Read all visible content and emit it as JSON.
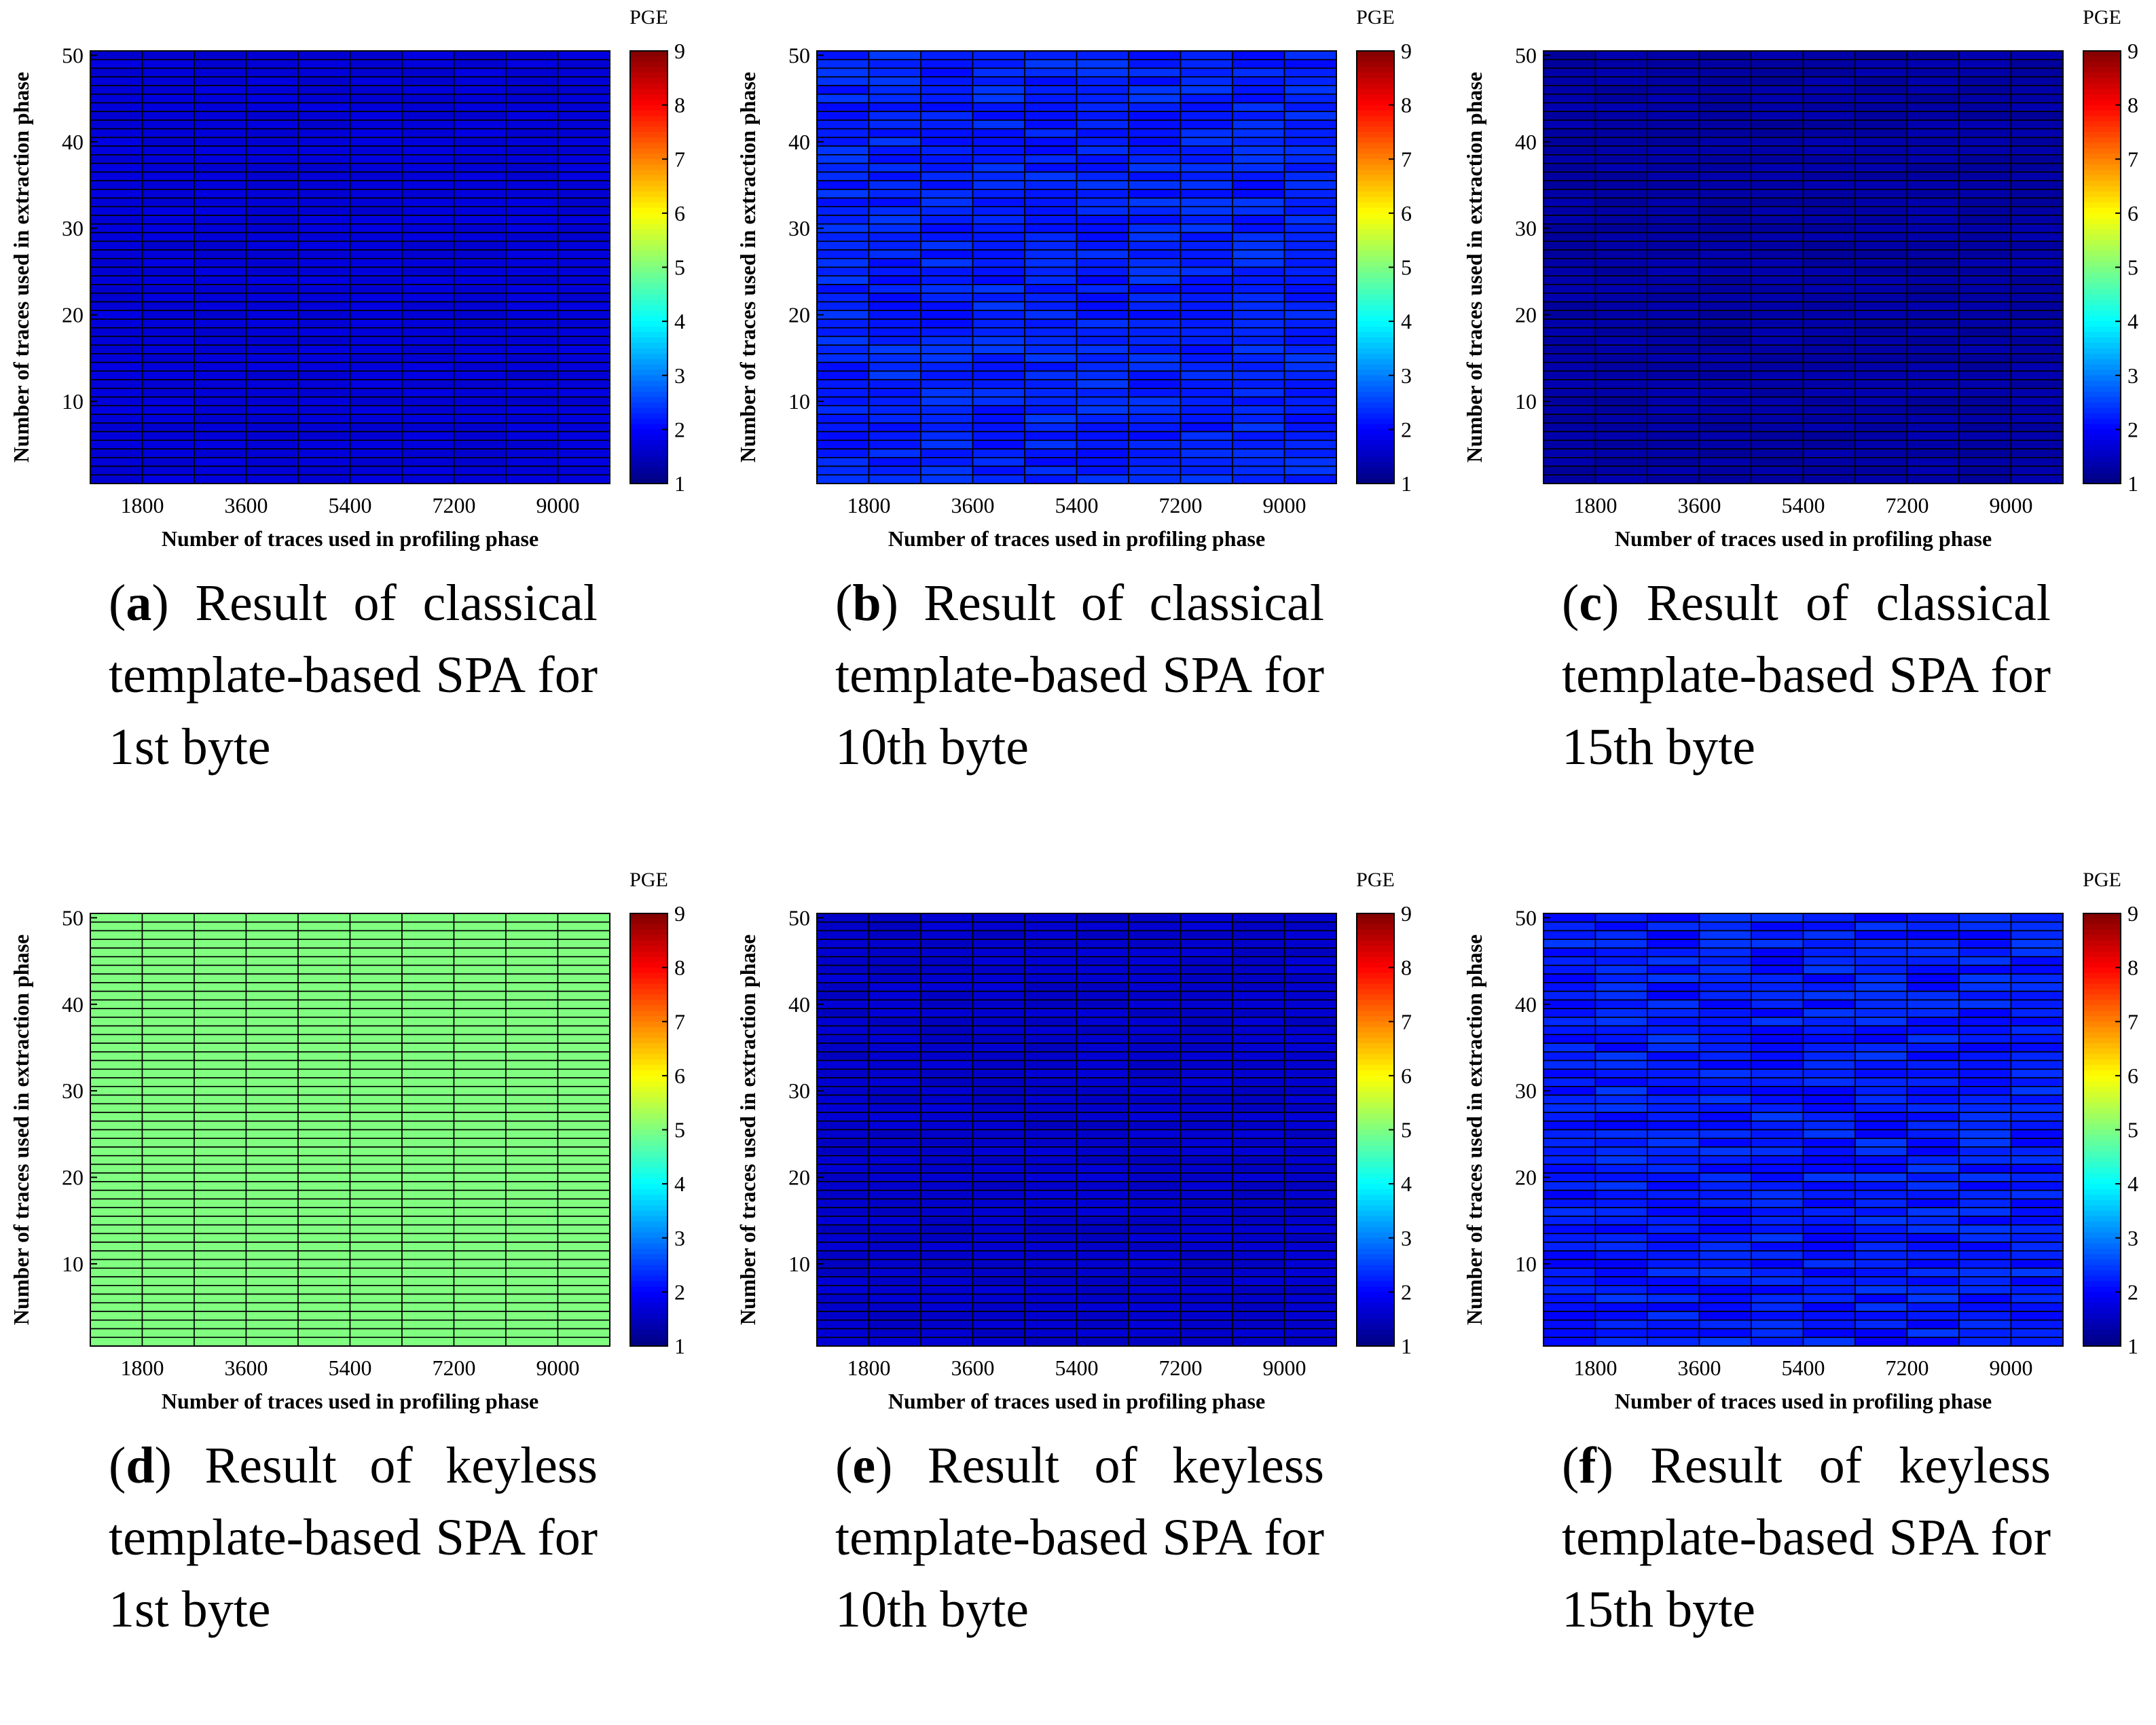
{
  "figure": {
    "panels": [
      {
        "letter": "a",
        "caption": "Result of classical template-based SPA for 1st byte"
      },
      {
        "letter": "b",
        "caption": "Result of classical template-based SPA for 10th byte"
      },
      {
        "letter": "c",
        "caption": "Result of classical template-based SPA for 15th byte"
      },
      {
        "letter": "d",
        "caption": "Result of keyless template-based SPA for 1st byte"
      },
      {
        "letter": "e",
        "caption": "Result of keyless template-based SPA for 10th byte"
      },
      {
        "letter": "f",
        "caption": "Result of keyless template-based SPA for 15th byte"
      }
    ]
  },
  "chart_data": [
    {
      "type": "heatmap",
      "id": "a",
      "xlabel": "Number of traces used in profiling phase",
      "ylabel": "Number of traces used in extraction phase",
      "x_ticks": [
        1800,
        3600,
        5400,
        7200,
        9000
      ],
      "y_ticks": [
        10,
        20,
        30,
        40,
        50
      ],
      "x_range": [
        900,
        9900
      ],
      "y_range": [
        1,
        50
      ],
      "columns": 10,
      "rows": 50,
      "colorbar": {
        "label": "PGE",
        "min": 1,
        "max": 9,
        "ticks": [
          1,
          2,
          3,
          4,
          5,
          6,
          7,
          8,
          9
        ],
        "colormap": "jet"
      },
      "pge_base": 1.7,
      "pge_variation": 0.08
    },
    {
      "type": "heatmap",
      "id": "b",
      "xlabel": "Number of traces used in profiling phase",
      "ylabel": "Number of traces used in extraction phase",
      "x_ticks": [
        1800,
        3600,
        5400,
        7200,
        9000
      ],
      "y_ticks": [
        10,
        20,
        30,
        40,
        50
      ],
      "x_range": [
        900,
        9900
      ],
      "y_range": [
        1,
        50
      ],
      "columns": 10,
      "rows": 50,
      "colorbar": {
        "label": "PGE",
        "min": 1,
        "max": 9,
        "ticks": [
          1,
          2,
          3,
          4,
          5,
          6,
          7,
          8,
          9
        ],
        "colormap": "jet"
      },
      "pge_base": 2.25,
      "pge_variation": 0.2
    },
    {
      "type": "heatmap",
      "id": "c",
      "xlabel": "Number of traces used in profiling phase",
      "ylabel": "Number of traces used in extraction phase",
      "x_ticks": [
        1800,
        3600,
        5400,
        7200,
        9000
      ],
      "y_ticks": [
        10,
        20,
        30,
        40,
        50
      ],
      "x_range": [
        900,
        9900
      ],
      "y_range": [
        1,
        50
      ],
      "columns": 10,
      "rows": 50,
      "colorbar": {
        "label": "PGE",
        "min": 1,
        "max": 9,
        "ticks": [
          1,
          2,
          3,
          4,
          5,
          6,
          7,
          8,
          9
        ],
        "colormap": "jet"
      },
      "pge_base": 1.3,
      "pge_variation": 0.1
    },
    {
      "type": "heatmap",
      "id": "d",
      "xlabel": "Number of traces used in profiling phase",
      "ylabel": "Number of traces used in extraction phase",
      "x_ticks": [
        1800,
        3600,
        5400,
        7200,
        9000
      ],
      "y_ticks": [
        10,
        20,
        30,
        40,
        50
      ],
      "x_range": [
        900,
        9900
      ],
      "y_range": [
        1,
        50
      ],
      "columns": 10,
      "rows": 50,
      "colorbar": {
        "label": "PGE",
        "min": 1,
        "max": 9,
        "ticks": [
          1,
          2,
          3,
          4,
          5,
          6,
          7,
          8,
          9
        ],
        "colormap": "jet"
      },
      "pge_base": 5.0,
      "pge_variation": 0.0
    },
    {
      "type": "heatmap",
      "id": "e",
      "xlabel": "Number of traces used in profiling phase",
      "ylabel": "Number of traces used in extraction phase",
      "x_ticks": [
        1800,
        3600,
        5400,
        7200,
        9000
      ],
      "y_ticks": [
        10,
        20,
        30,
        40,
        50
      ],
      "x_range": [
        900,
        9900
      ],
      "y_range": [
        1,
        50
      ],
      "columns": 10,
      "rows": 50,
      "colorbar": {
        "label": "PGE",
        "min": 1,
        "max": 9,
        "ticks": [
          1,
          2,
          3,
          4,
          5,
          6,
          7,
          8,
          9
        ],
        "colormap": "jet"
      },
      "pge_base": 1.6,
      "pge_variation": 0.1
    },
    {
      "type": "heatmap",
      "id": "f",
      "xlabel": "Number of traces used in profiling phase",
      "ylabel": "Number of traces used in extraction phase",
      "x_ticks": [
        1800,
        3600,
        5400,
        7200,
        9000
      ],
      "y_ticks": [
        10,
        20,
        30,
        40,
        50
      ],
      "x_range": [
        900,
        9900
      ],
      "y_range": [
        1,
        50
      ],
      "columns": 10,
      "rows": 50,
      "colorbar": {
        "label": "PGE",
        "min": 1,
        "max": 9,
        "ticks": [
          1,
          2,
          3,
          4,
          5,
          6,
          7,
          8,
          9
        ],
        "colormap": "jet"
      },
      "pge_base": 2.2,
      "pge_variation": 0.25
    }
  ]
}
